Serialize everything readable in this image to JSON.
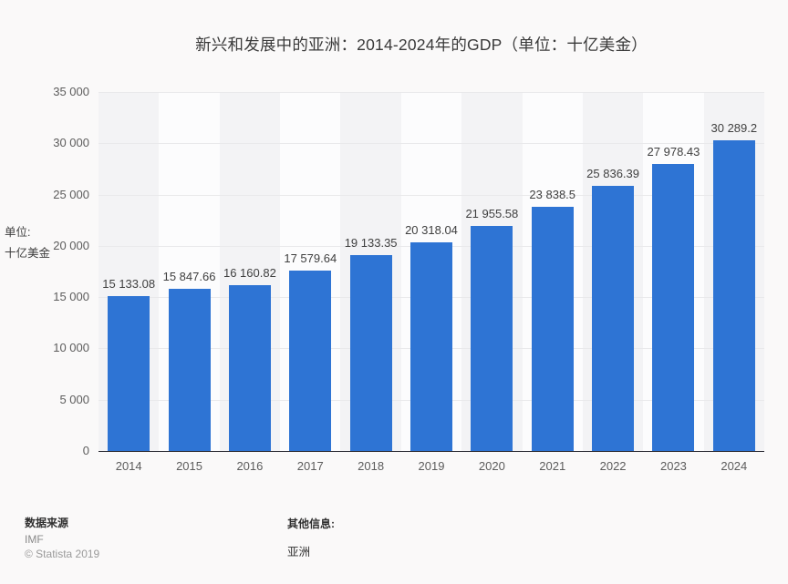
{
  "title": "新兴和发展中的亚洲：2014-2024年的GDP（单位：十亿美金）",
  "y_axis": {
    "unit_line1": "单位:",
    "unit_line2": "十亿美金",
    "tick_labels": [
      "35 000",
      "30 000",
      "25 000",
      "20 000",
      "15 000",
      "10 000",
      "5 000",
      "0"
    ]
  },
  "chart_data": {
    "type": "bar",
    "title": "新兴和发展中的亚洲：2014-2024年的GDP（单位：十亿美金）",
    "categories": [
      "2014",
      "2015",
      "2016",
      "2017",
      "2018",
      "2019",
      "2020",
      "2021",
      "2022",
      "2023",
      "2024"
    ],
    "values": [
      15133.08,
      15847.66,
      16160.82,
      17579.64,
      19133.35,
      20318.04,
      21955.58,
      23838.5,
      25836.39,
      27978.43,
      30289.2
    ],
    "value_labels": [
      "15 133.08",
      "15 847.66",
      "16 160.82",
      "17 579.64",
      "19 133.35",
      "20 318.04",
      "21 955.58",
      "23 838.5",
      "25 836.39",
      "27 978.43",
      "30 289.2"
    ],
    "xlabel": "",
    "ylabel": "单位: 十亿美金",
    "ylim": [
      0,
      35000
    ],
    "ytick_step": 5000,
    "grid": true,
    "legend_position": "none",
    "bar_color": "#2e74d4"
  },
  "footer": {
    "source_label": "数据来源",
    "source_value": "IMF",
    "copyright": "© Statista 2019",
    "info_label": "其他信息:",
    "info_value": "亚洲"
  }
}
